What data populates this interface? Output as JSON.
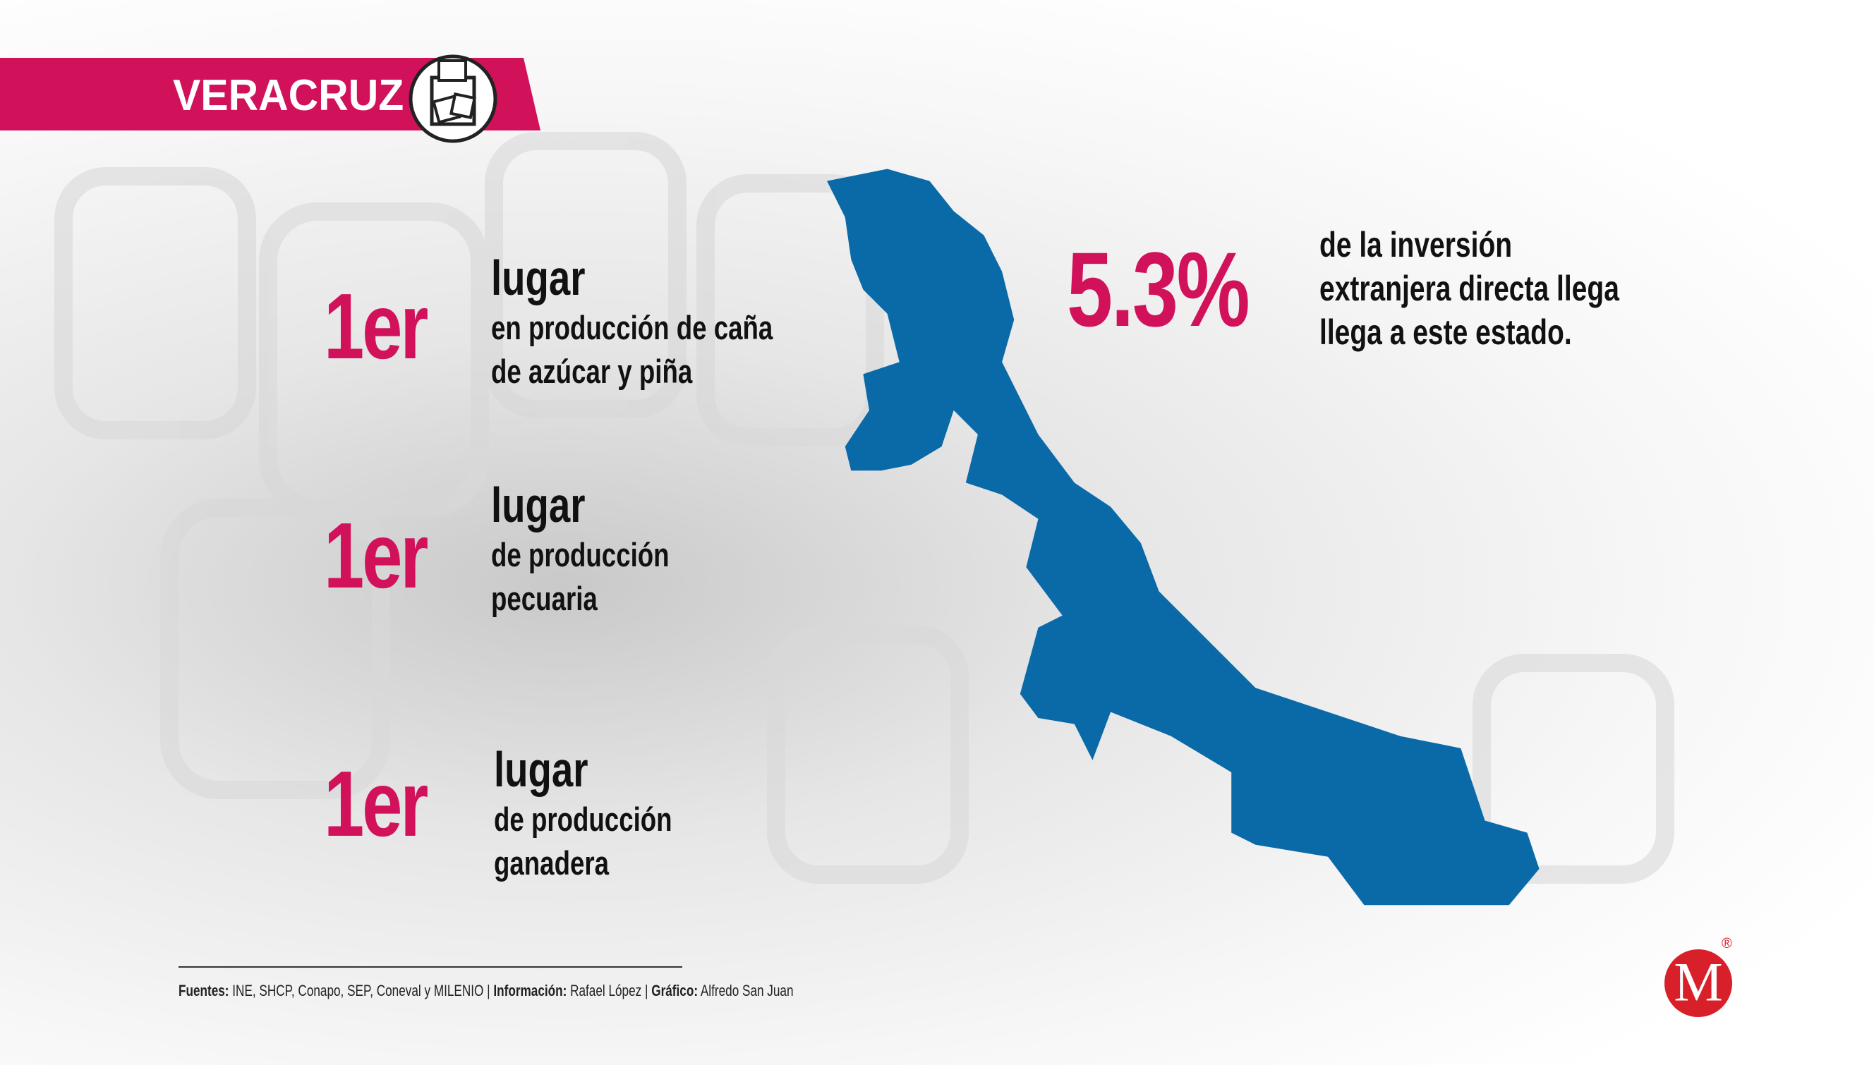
{
  "header": {
    "title": "VERACRUZ"
  },
  "items": [
    {
      "rank": "1er",
      "title": "lugar",
      "lines": [
        "en producción de caña",
        "de azúcar y piña"
      ]
    },
    {
      "rank": "1er",
      "title": "lugar",
      "lines": [
        "de producción",
        "pecuaria"
      ]
    },
    {
      "rank": "1er",
      "title": "lugar",
      "lines": [
        "de producción",
        "ganadera"
      ]
    }
  ],
  "stat": {
    "value": "5.3%",
    "lines": [
      "de la inversión",
      "extranjera directa llega",
      "llega a este estado."
    ]
  },
  "footer": {
    "separator": "|",
    "sources_label": "Fuentes:",
    "sources": "INE, SHCP, Conapo, SEP, Coneval y MILENIO",
    "info_label": "Información:",
    "info": "Rafael López",
    "graphic_label": "Gráfico:",
    "graphic": "Alfredo San Juan"
  },
  "logo": {
    "letter": "M",
    "mark": "®"
  }
}
